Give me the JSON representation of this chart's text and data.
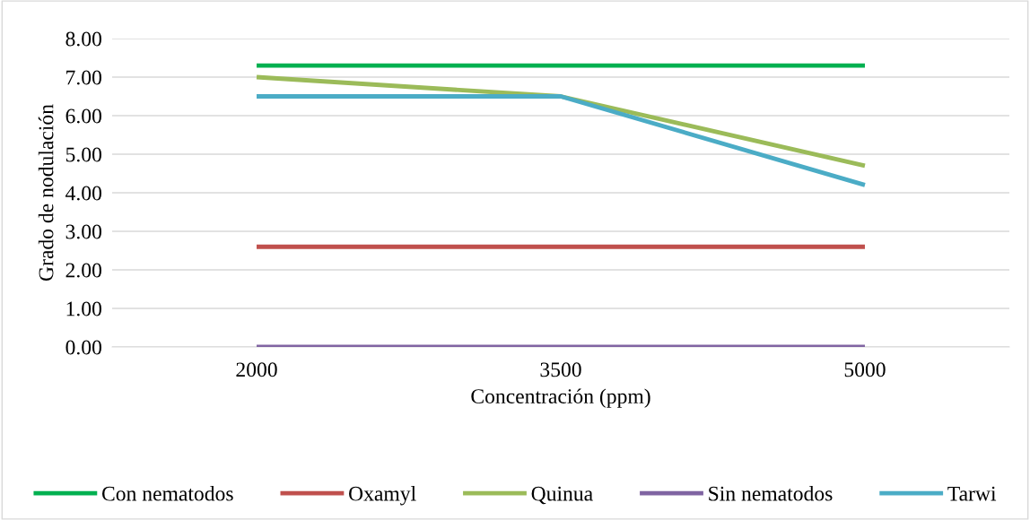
{
  "chart_data": {
    "type": "line",
    "xlabel": "Concentración (ppm)",
    "ylabel": "Grado de nodulación",
    "categories": [
      "2000",
      "3500",
      "5000"
    ],
    "series": [
      {
        "name": "Con nematodos",
        "color": "#00b050",
        "values": [
          7.3,
          7.3,
          7.3
        ]
      },
      {
        "name": "Oxamyl",
        "color": "#c0504d",
        "values": [
          2.6,
          2.6,
          2.6
        ]
      },
      {
        "name": "Quinua",
        "color": "#9bbb59",
        "values": [
          7.0,
          6.5,
          4.7
        ]
      },
      {
        "name": "Sin nematodos",
        "color": "#8064a2",
        "values": [
          0,
          0,
          0
        ]
      },
      {
        "name": "Tarwi",
        "color": "#4bacc6",
        "values": [
          6.5,
          6.5,
          4.2
        ]
      }
    ],
    "ylim": [
      0,
      8
    ],
    "yticks": [
      {
        "value": 0,
        "label": "0.00"
      },
      {
        "value": 1,
        "label": "1.00"
      },
      {
        "value": 2,
        "label": "2.00"
      },
      {
        "value": 3,
        "label": "3.00"
      },
      {
        "value": 4,
        "label": "4.00"
      },
      {
        "value": 5,
        "label": "5.00"
      },
      {
        "value": 6,
        "label": "6.00"
      },
      {
        "value": 7,
        "label": "7.00"
      },
      {
        "value": 8,
        "label": "8.00"
      }
    ],
    "grid": "y",
    "legend": "bottom",
    "marker": "none",
    "line_style": "solid"
  }
}
